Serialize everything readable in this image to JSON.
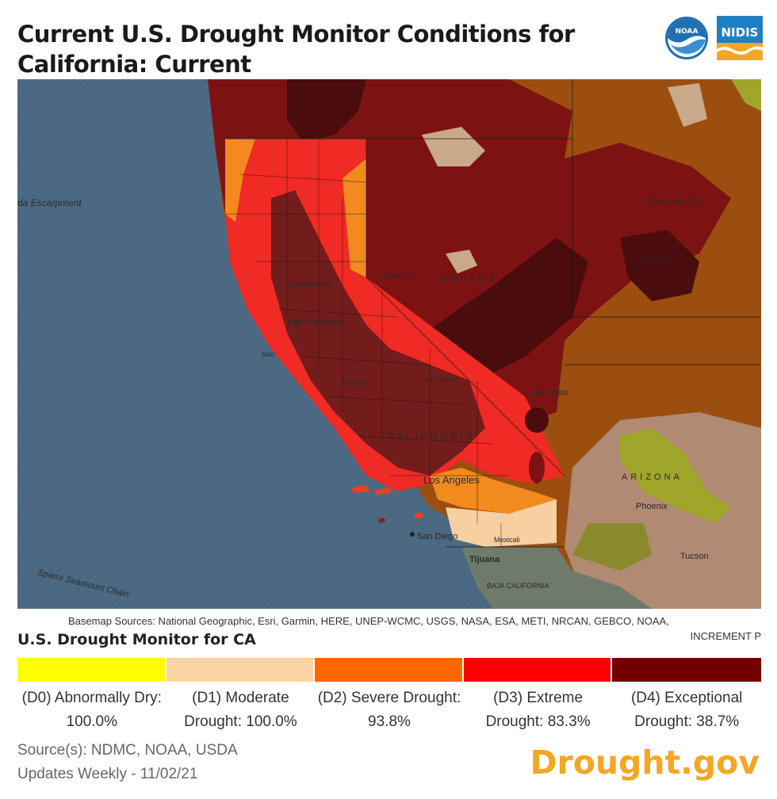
{
  "title": "Current U.S. Drought Monitor Conditions for California: Current",
  "logos": {
    "noaa": "NOAA",
    "nidis": "NIDIS"
  },
  "map": {
    "labels": {
      "escarpment": "da Escarpment",
      "seamount": "Spiess Seamount Chain",
      "salt_lake_city": "Salt Lake City",
      "utah": "UTAH",
      "nevada": "NEVADA",
      "carson_city": "Carson City",
      "sacramento": "Sacramento",
      "san_francisco": "San Francisco",
      "san": "San",
      "fresno": "Fresno",
      "mt_whitney": "Mt Whitney",
      "las_vegas": "Las Vegas",
      "california": "CALIFORNIA",
      "los_angeles": "Los Angeles",
      "arizona": "ARIZONA",
      "phoenix": "Phoenix",
      "tucson": "Tucson",
      "san_diego": "San Diego",
      "mexicali": "Mexicali",
      "tijuana": "Tijuana",
      "baja_california": "BAJA CALIFORNIA"
    }
  },
  "attribution": {
    "line1": "Basemap Sources: National Geographic, Esri, Garmin, HERE, UNEP-WCMC, USGS, NASA, ESA, METI, NRCAN, GEBCO, NOAA,",
    "line2": "INCREMENT P"
  },
  "legend": {
    "title": "U.S. Drought Monitor for CA",
    "items": [
      {
        "label": "(D0) Abnormally Dry: 100.0%",
        "color": "#ffff00",
        "percent": 100.0
      },
      {
        "label": "(D1) Moderate Drought: 100.0%",
        "color": "#fcd37f",
        "percent": 100.0
      },
      {
        "label": "(D2) Severe Drought: 93.8%",
        "color": "#ffaa00",
        "percent": 93.8
      },
      {
        "label": "(D3) Extreme Drought: 83.3%",
        "color": "#e60000",
        "percent": 83.3
      },
      {
        "label": "(D4) Exceptional Drought: 38.7%",
        "color": "#730000",
        "percent": 38.7
      }
    ]
  },
  "source": {
    "line1": "Source(s): NDMC, NOAA, USDA",
    "line2": "Updates Weekly - 11/02/21"
  },
  "brand": "Drought.gov"
}
